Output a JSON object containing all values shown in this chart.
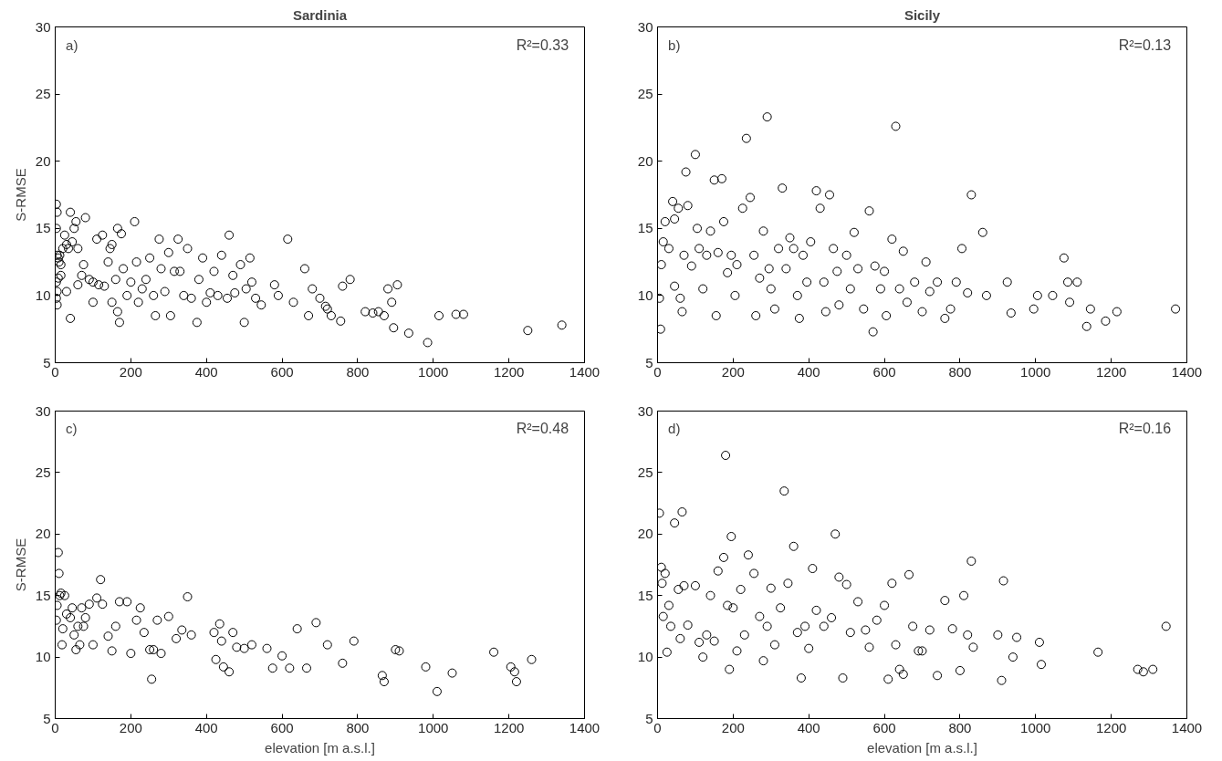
{
  "chart_data": [
    {
      "type": "scatter",
      "title": "Sardinia",
      "ylabel": "S-RMSE",
      "annotations": [
        "a)",
        "R²=0.33"
      ],
      "xlim": [
        0,
        1400
      ],
      "ylim": [
        5,
        30
      ],
      "xticks": [
        0,
        200,
        400,
        600,
        800,
        1000,
        1200,
        1400
      ],
      "yticks": [
        5,
        10,
        15,
        20,
        25,
        30
      ],
      "marker": "circle",
      "grid": false,
      "series": [
        {
          "color": "#000000",
          "x": [
            3,
            5,
            3,
            5,
            8,
            10,
            12,
            15,
            3,
            5,
            3,
            5,
            8,
            15,
            20,
            25,
            30,
            30,
            35,
            40,
            45,
            40,
            50,
            55,
            60,
            60,
            70,
            75,
            80,
            90,
            100,
            100,
            110,
            115,
            125,
            130,
            140,
            145,
            150,
            150,
            160,
            165,
            165,
            170,
            175,
            180,
            190,
            200,
            210,
            215,
            220,
            230,
            240,
            250,
            260,
            265,
            275,
            280,
            290,
            300,
            305,
            315,
            325,
            330,
            340,
            350,
            360,
            375,
            380,
            390,
            400,
            410,
            420,
            430,
            440,
            455,
            460,
            470,
            475,
            490,
            500,
            505,
            515,
            520,
            530,
            545,
            580,
            590,
            615,
            630,
            660,
            670,
            680,
            700,
            715,
            720,
            730,
            755,
            760,
            780,
            820,
            840,
            855,
            870,
            880,
            890,
            895,
            905,
            935,
            985,
            1015,
            1060,
            1080,
            1250,
            1340
          ],
          "values": [
            16.8,
            16.2,
            15,
            13,
            12.8,
            12.5,
            13,
            12.3,
            11,
            10.3,
            9.8,
            9.3,
            11.3,
            11.5,
            13.5,
            14.5,
            13.8,
            10.3,
            13.5,
            16.2,
            14,
            8.3,
            15,
            15.5,
            13.5,
            10.8,
            11.5,
            12.3,
            15.8,
            11.2,
            11,
            9.5,
            14.2,
            10.8,
            14.5,
            10.7,
            12.5,
            13.5,
            13.8,
            9.5,
            11.2,
            15,
            8.8,
            8,
            14.6,
            12,
            10,
            11,
            15.5,
            12.5,
            9.5,
            10.5,
            11.2,
            12.8,
            10,
            8.5,
            14.2,
            12,
            10.3,
            13.2,
            8.5,
            11.8,
            14.2,
            11.8,
            10,
            13.5,
            9.8,
            8,
            11.2,
            12.8,
            9.5,
            10.2,
            11.8,
            10,
            13,
            9.8,
            14.5,
            11.5,
            10.2,
            12.3,
            8,
            10.5,
            12.8,
            11,
            9.8,
            9.3,
            10.8,
            10,
            14.2,
            9.5,
            12,
            8.5,
            10.5,
            9.8,
            9.2,
            9,
            8.5,
            8.1,
            10.7,
            11.2,
            8.8,
            8.7,
            8.8,
            8.5,
            10.5,
            9.5,
            7.6,
            10.8,
            7.2,
            6.5,
            8.5,
            8.6,
            8.6,
            7.4,
            7.8
          ]
        }
      ]
    },
    {
      "type": "scatter",
      "title": "Sicily",
      "annotations": [
        "b)",
        "R²=0.13"
      ],
      "xlim": [
        0,
        1400
      ],
      "ylim": [
        5,
        30
      ],
      "xticks": [
        0,
        200,
        400,
        600,
        800,
        1000,
        1200,
        1400
      ],
      "yticks": [
        5,
        10,
        15,
        20,
        25,
        30
      ],
      "marker": "circle",
      "grid": false,
      "series": [
        {
          "color": "#000000",
          "x": [
            5,
            8,
            10,
            15,
            20,
            30,
            40,
            45,
            45,
            55,
            60,
            65,
            70,
            75,
            80,
            90,
            100,
            105,
            110,
            120,
            130,
            140,
            150,
            155,
            160,
            170,
            175,
            185,
            195,
            205,
            210,
            225,
            235,
            245,
            255,
            260,
            270,
            280,
            290,
            295,
            300,
            310,
            320,
            330,
            340,
            350,
            360,
            370,
            375,
            385,
            395,
            405,
            420,
            430,
            440,
            445,
            455,
            465,
            475,
            480,
            500,
            510,
            520,
            530,
            545,
            560,
            570,
            575,
            590,
            600,
            605,
            620,
            630,
            640,
            650,
            660,
            680,
            700,
            710,
            720,
            740,
            760,
            775,
            790,
            805,
            820,
            830,
            860,
            870,
            925,
            935,
            995,
            1005,
            1045,
            1075,
            1085,
            1090,
            1110,
            1135,
            1145,
            1185,
            1215,
            1370
          ],
          "values": [
            9.8,
            7.5,
            12.3,
            14,
            15.5,
            13.5,
            17,
            15.7,
            10.7,
            16.5,
            9.8,
            8.8,
            13,
            19.2,
            16.7,
            12.2,
            20.5,
            15,
            13.5,
            10.5,
            13,
            14.8,
            18.6,
            8.5,
            13.2,
            18.7,
            15.5,
            11.7,
            13,
            10,
            12.3,
            16.5,
            21.7,
            17.3,
            13,
            8.5,
            11.3,
            14.8,
            23.3,
            12,
            10.5,
            9,
            13.5,
            18,
            12,
            14.3,
            13.5,
            10,
            8.3,
            13,
            11,
            14,
            17.8,
            16.5,
            11,
            8.8,
            17.5,
            13.5,
            11.8,
            9.3,
            13,
            10.5,
            14.7,
            12,
            9,
            16.3,
            7.3,
            12.2,
            10.5,
            11.8,
            8.5,
            14.2,
            22.6,
            10.5,
            13.3,
            9.5,
            11,
            8.8,
            12.5,
            10.3,
            11,
            8.3,
            9,
            11,
            13.5,
            10.2,
            17.5,
            14.7,
            10,
            11,
            8.7,
            9,
            10,
            10,
            12.8,
            11,
            9.5,
            11,
            7.7,
            9,
            8.1,
            8.8,
            9
          ]
        }
      ]
    },
    {
      "type": "scatter",
      "xlabel": "elevation [m a.s.l.]",
      "ylabel": "S-RMSE",
      "annotations": [
        "c)",
        "R²=0.48"
      ],
      "xlim": [
        0,
        1400
      ],
      "ylim": [
        5,
        30
      ],
      "xticks": [
        0,
        200,
        400,
        600,
        800,
        1000,
        1200,
        1400
      ],
      "yticks": [
        5,
        10,
        15,
        20,
        25,
        30
      ],
      "marker": "circle",
      "grid": false,
      "series": [
        {
          "color": "#000000",
          "x": [
            3,
            5,
            8,
            10,
            12,
            15,
            18,
            20,
            25,
            30,
            40,
            45,
            50,
            55,
            60,
            65,
            70,
            75,
            80,
            90,
            100,
            110,
            120,
            125,
            140,
            150,
            160,
            170,
            190,
            200,
            215,
            225,
            235,
            250,
            255,
            260,
            270,
            280,
            300,
            320,
            335,
            350,
            360,
            420,
            425,
            435,
            440,
            445,
            460,
            470,
            480,
            500,
            520,
            560,
            575,
            600,
            620,
            640,
            665,
            690,
            720,
            760,
            790,
            865,
            870,
            900,
            910,
            980,
            1010,
            1050,
            1160,
            1205,
            1215,
            1220,
            1260
          ],
          "values": [
            13,
            14.2,
            18.5,
            16.8,
            15,
            15.2,
            11,
            12.3,
            15,
            13.5,
            13.2,
            14,
            11.8,
            10.6,
            12.5,
            11,
            14,
            12.5,
            13.2,
            14.3,
            11,
            14.8,
            16.3,
            14.3,
            11.7,
            10.5,
            12.5,
            14.5,
            14.5,
            10.3,
            13,
            14,
            12,
            10.6,
            8.2,
            10.6,
            13,
            10.3,
            13.3,
            11.5,
            12.2,
            14.9,
            11.8,
            12,
            9.8,
            12.7,
            11.3,
            9.2,
            8.8,
            12,
            10.8,
            10.7,
            11,
            10.7,
            9.1,
            10.1,
            9.1,
            12.3,
            9.1,
            12.8,
            11,
            9.5,
            11.3,
            8.5,
            8,
            10.6,
            10.5,
            9.2,
            7.2,
            8.7,
            10.4,
            9.2,
            8.8,
            8,
            9.8
          ]
        }
      ]
    },
    {
      "type": "scatter",
      "xlabel": "elevation [m a.s.l.]",
      "annotations": [
        "d)",
        "R²=0.16"
      ],
      "xlim": [
        0,
        1400
      ],
      "ylim": [
        5,
        30
      ],
      "xticks": [
        0,
        200,
        400,
        600,
        800,
        1000,
        1200,
        1400
      ],
      "yticks": [
        5,
        10,
        15,
        20,
        25,
        30
      ],
      "marker": "circle",
      "grid": false,
      "series": [
        {
          "color": "#000000",
          "x": [
            5,
            10,
            12,
            15,
            20,
            25,
            30,
            35,
            45,
            55,
            60,
            65,
            70,
            80,
            100,
            110,
            120,
            130,
            140,
            150,
            160,
            175,
            180,
            185,
            190,
            195,
            200,
            210,
            220,
            230,
            240,
            255,
            270,
            280,
            290,
            300,
            310,
            325,
            335,
            345,
            360,
            370,
            380,
            390,
            400,
            410,
            420,
            440,
            460,
            470,
            480,
            490,
            500,
            510,
            530,
            550,
            560,
            580,
            600,
            610,
            620,
            630,
            640,
            650,
            665,
            675,
            690,
            700,
            720,
            740,
            760,
            780,
            800,
            810,
            820,
            830,
            835,
            900,
            910,
            915,
            940,
            950,
            1010,
            1015,
            1165,
            1270,
            1285,
            1310,
            1345
          ],
          "values": [
            21.7,
            17.3,
            16,
            13.3,
            16.8,
            10.4,
            14.2,
            12.5,
            20.9,
            15.5,
            11.5,
            21.8,
            15.8,
            12.6,
            15.8,
            11.2,
            10,
            11.8,
            15,
            11.3,
            17,
            18.1,
            26.4,
            14.2,
            9,
            19.8,
            14,
            10.5,
            15.5,
            11.8,
            18.3,
            16.8,
            13.3,
            9.7,
            12.5,
            15.6,
            11,
            14,
            23.5,
            16,
            19,
            12,
            8.3,
            12.5,
            10.7,
            17.2,
            13.8,
            12.5,
            13.2,
            20,
            16.5,
            8.3,
            15.9,
            12,
            14.5,
            12.2,
            10.8,
            13,
            14.2,
            8.2,
            16,
            11,
            9,
            8.6,
            16.7,
            12.5,
            10.5,
            10.5,
            12.2,
            8.5,
            14.6,
            12.3,
            8.9,
            15,
            11.8,
            17.8,
            10.8,
            11.8,
            8.1,
            16.2,
            10,
            11.6,
            11.2,
            9.4,
            10.4,
            9,
            8.8,
            9,
            12.5
          ]
        }
      ]
    }
  ]
}
